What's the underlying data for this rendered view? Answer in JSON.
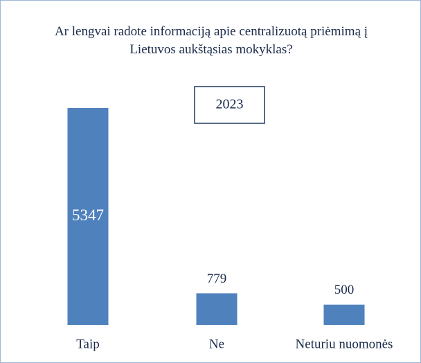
{
  "chart_data": {
    "type": "bar",
    "title": "Ar lengvai radote informaciją apie centralizuotą priėmimą į Lietuvos aukštąsias mokyklas?",
    "annotation": "2023",
    "categories": [
      "Taip",
      "Ne",
      "Neturiu nuomonės"
    ],
    "values": [
      5347,
      779,
      500
    ],
    "color": "#4f81bd"
  }
}
